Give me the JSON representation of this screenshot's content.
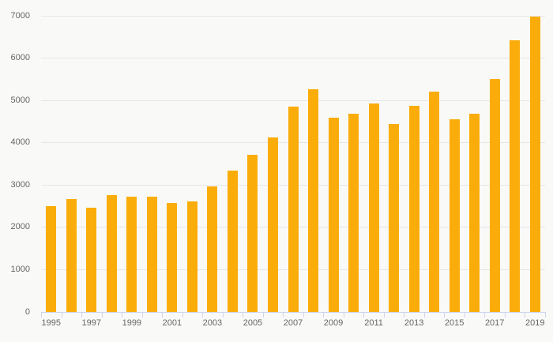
{
  "chart_data": {
    "type": "bar",
    "title": "",
    "xlabel": "",
    "ylabel": "",
    "categories": [
      "1995",
      "1996",
      "1997",
      "1998",
      "1999",
      "2000",
      "2001",
      "2002",
      "2003",
      "2004",
      "2005",
      "2006",
      "2007",
      "2008",
      "2009",
      "2010",
      "2011",
      "2012",
      "2013",
      "2014",
      "2015",
      "2016",
      "2017",
      "2018",
      "2019"
    ],
    "values": [
      2510,
      2670,
      2470,
      2760,
      2720,
      2730,
      2570,
      2620,
      2960,
      3350,
      3720,
      4130,
      4850,
      5270,
      4590,
      4680,
      4930,
      4450,
      4870,
      5200,
      4560,
      4690,
      5500,
      6420,
      6980
    ],
    "ylim": [
      0,
      7000
    ],
    "y_ticks": [
      0,
      1000,
      2000,
      3000,
      4000,
      5000,
      6000,
      7000
    ],
    "x_labeled_categories": [
      "1995",
      "1997",
      "1999",
      "2001",
      "2003",
      "2005",
      "2007",
      "2009",
      "2011",
      "2013",
      "2015",
      "2017",
      "2019"
    ],
    "grid": true,
    "legend": false,
    "colors": {
      "bar": "#faad0a",
      "background": "#f9f9f8",
      "gridline": "#e6e6e6",
      "axis_line": "#ccd6eb",
      "tick": "#ccd6eb",
      "label_text": "#666666"
    }
  }
}
